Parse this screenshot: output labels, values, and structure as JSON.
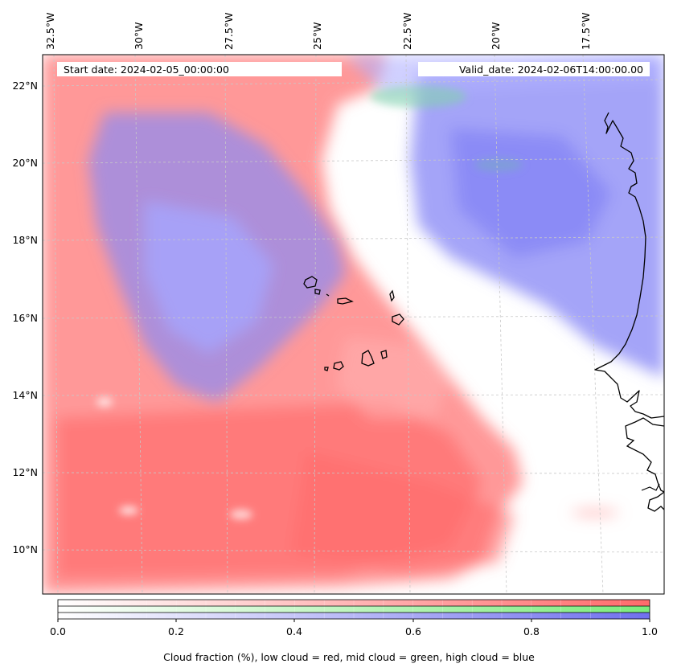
{
  "map": {
    "start_date": "Start date: 2024-02-05_00:00:00",
    "valid_date": "Valid_date: 2024-02-06T14:00:00.00",
    "lon_labels": [
      "32.5°W",
      "30°W",
      "27.5°W",
      "25°W",
      "22.5°W",
      "20°W",
      "17.5°W"
    ],
    "lat_labels": [
      "22°N",
      "20°N",
      "18°N",
      "16°N",
      "14°N",
      "12°N",
      "10°N"
    ],
    "colors": {
      "low_cloud": "#ff7070",
      "mid_cloud": "#7ee07e",
      "high_cloud": "#7a7af5",
      "coastline": "#000000",
      "gridline": "#c8c8c8"
    }
  },
  "colorbar": {
    "ticks": [
      "0.0",
      "0.2",
      "0.4",
      "0.6",
      "0.8",
      "1.0"
    ],
    "label": "Cloud fraction (%), low cloud = red, mid cloud = green, high cloud = blue",
    "bars": [
      {
        "name": "low",
        "color": "#ff6b6b"
      },
      {
        "name": "mid",
        "color": "#7cec7c"
      },
      {
        "name": "high",
        "color": "#7070ee"
      }
    ]
  }
}
